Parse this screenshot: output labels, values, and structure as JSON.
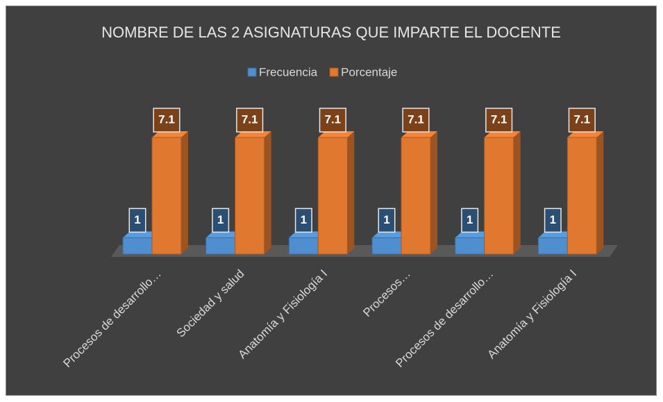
{
  "chart_data": {
    "type": "bar3d",
    "title": "NOMBRE DE LAS 2 ASIGNATURAS QUE IMPARTE EL DOCENTE",
    "categories": [
      "Procesos de desarrollo…",
      "Sociedad y salud",
      "Anatomía y Fisiología I",
      "Procesos…",
      "Procesos de desarrollo…",
      "Anatomía y Fisiología I"
    ],
    "series": [
      {
        "name": "Frecuencia",
        "color": "#4f8fcf",
        "values": [
          1,
          1,
          1,
          1,
          1,
          1
        ]
      },
      {
        "name": "Porcentaje",
        "color": "#e0782f",
        "values": [
          7.1,
          7.1,
          7.1,
          7.1,
          7.1,
          7.1
        ]
      }
    ],
    "legend": "top"
  }
}
